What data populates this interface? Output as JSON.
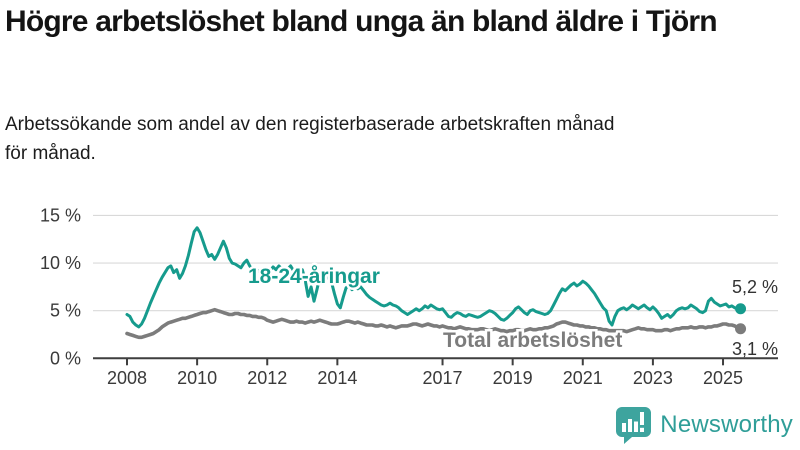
{
  "header": {
    "title_lines": [
      "Högre arbetslöshet bland unga än bland äldre i Tjörn"
    ],
    "subtitle_lines": [
      "Arbetssökande som andel av den registerbaserade arbetskraften månad",
      "för månad."
    ]
  },
  "footer": {
    "brand": "Newsworthy"
  },
  "colors": {
    "youth": "#169b8d",
    "total": "#7c7c7c",
    "grid": "#d9d9d9",
    "axis": "#3f3f3f",
    "tick_text": "#3a3a3a",
    "annotation_text": "#333333",
    "brand_teal": "#3ea49e"
  },
  "chart_data": {
    "type": "line",
    "title": "Högre arbetslöshet bland unga än bland äldre i Tjörn",
    "subtitle": "Arbetssökande som andel av den registerbaserade arbetskraften månad för månad.",
    "frequency": "monthly",
    "x_start_year": 2008,
    "x_end": "2025-07",
    "ylim": [
      0,
      15
    ],
    "grid": true,
    "y_ticks": [
      {
        "value": 0,
        "label": "0 %"
      },
      {
        "value": 5,
        "label": "5 %"
      },
      {
        "value": 10,
        "label": "10 %"
      },
      {
        "value": 15,
        "label": "15 %"
      }
    ],
    "x_ticks": [
      {
        "year": 2008,
        "label": "2008"
      },
      {
        "year": 2010,
        "label": "2010"
      },
      {
        "year": 2012,
        "label": "2012"
      },
      {
        "year": 2014,
        "label": "2014"
      },
      {
        "year": 2017,
        "label": "2017"
      },
      {
        "year": 2019,
        "label": "2019"
      },
      {
        "year": 2021,
        "label": "2021"
      },
      {
        "year": 2023,
        "label": "2023"
      },
      {
        "year": 2025,
        "label": "2025"
      }
    ],
    "series": [
      {
        "name": "Total arbetslöshet",
        "color": "#7c7c7c",
        "end_label": "3,1 %",
        "values": [
          2.6,
          2.5,
          2.4,
          2.3,
          2.2,
          2.2,
          2.3,
          2.4,
          2.5,
          2.6,
          2.8,
          3.0,
          3.3,
          3.5,
          3.7,
          3.8,
          3.9,
          4.0,
          4.1,
          4.2,
          4.2,
          4.3,
          4.4,
          4.5,
          4.6,
          4.7,
          4.8,
          4.8,
          4.9,
          5.0,
          5.1,
          5.0,
          4.9,
          4.8,
          4.7,
          4.6,
          4.6,
          4.7,
          4.7,
          4.6,
          4.6,
          4.5,
          4.5,
          4.4,
          4.4,
          4.3,
          4.3,
          4.2,
          4.0,
          3.9,
          3.8,
          3.9,
          4.0,
          4.1,
          4.0,
          3.9,
          3.8,
          3.8,
          3.9,
          3.8,
          3.8,
          3.7,
          3.8,
          3.9,
          3.8,
          3.9,
          4.0,
          3.9,
          3.8,
          3.7,
          3.6,
          3.6,
          3.6,
          3.7,
          3.8,
          3.9,
          3.9,
          3.8,
          3.7,
          3.8,
          3.7,
          3.6,
          3.5,
          3.5,
          3.5,
          3.4,
          3.4,
          3.5,
          3.4,
          3.3,
          3.4,
          3.3,
          3.2,
          3.3,
          3.4,
          3.4,
          3.4,
          3.5,
          3.6,
          3.6,
          3.5,
          3.4,
          3.5,
          3.6,
          3.5,
          3.4,
          3.4,
          3.3,
          3.4,
          3.3,
          3.2,
          3.2,
          3.1,
          3.2,
          3.3,
          3.2,
          3.1,
          3.1,
          3.0,
          3.0,
          3.0,
          3.1,
          3.1,
          3.0,
          2.9,
          3.0,
          3.1,
          3.0,
          2.9,
          2.9,
          2.8,
          2.9,
          2.9,
          3.0,
          3.0,
          2.9,
          2.9,
          3.0,
          3.1,
          3.0,
          3.0,
          3.1,
          3.1,
          3.2,
          3.2,
          3.3,
          3.4,
          3.6,
          3.7,
          3.8,
          3.8,
          3.7,
          3.6,
          3.5,
          3.5,
          3.4,
          3.4,
          3.3,
          3.3,
          3.2,
          3.2,
          3.1,
          3.1,
          3.0,
          3.0,
          2.9,
          2.9,
          2.9,
          2.9,
          2.9,
          2.9,
          2.8,
          2.9,
          3.0,
          3.1,
          3.2,
          3.1,
          3.1,
          3.0,
          3.0,
          3.0,
          2.9,
          2.9,
          2.9,
          3.0,
          3.0,
          2.9,
          3.0,
          3.1,
          3.1,
          3.2,
          3.2,
          3.2,
          3.3,
          3.2,
          3.2,
          3.3,
          3.3,
          3.2,
          3.3,
          3.3,
          3.4,
          3.4,
          3.5,
          3.6,
          3.6,
          3.5,
          3.5,
          3.4,
          3.2,
          3.1
        ]
      },
      {
        "name": "18-24-åringar",
        "color": "#169b8d",
        "end_label": "5,2 %",
        "values": [
          4.6,
          4.4,
          3.8,
          3.5,
          3.3,
          3.6,
          4.2,
          5.0,
          5.8,
          6.5,
          7.2,
          7.9,
          8.5,
          9.0,
          9.5,
          9.7,
          9.0,
          9.3,
          8.4,
          8.9,
          9.7,
          10.8,
          12.1,
          13.3,
          13.7,
          13.2,
          12.3,
          11.4,
          10.7,
          10.9,
          10.4,
          10.9,
          11.6,
          12.3,
          11.6,
          10.5,
          10.0,
          9.9,
          9.7,
          9.5,
          10.0,
          10.3,
          9.7,
          9.2,
          9.0,
          9.2,
          8.9,
          8.7,
          8.6,
          9.2,
          9.6,
          9.3,
          9.7,
          9.4,
          9.0,
          9.4,
          9.7,
          9.2,
          9.5,
          9.1,
          9.3,
          8.2,
          6.5,
          7.5,
          6.0,
          7.2,
          8.5,
          8.6,
          8.4,
          8.5,
          8.0,
          6.8,
          5.7,
          5.3,
          6.4,
          7.4,
          7.6,
          7.2,
          7.5,
          7.3,
          7.5,
          7.1,
          6.7,
          6.4,
          6.2,
          6.0,
          5.8,
          5.6,
          5.5,
          5.6,
          5.8,
          5.6,
          5.5,
          5.3,
          5.0,
          4.8,
          4.6,
          4.8,
          5.0,
          5.2,
          5.0,
          5.2,
          5.5,
          5.3,
          5.6,
          5.4,
          5.2,
          5.1,
          5.2,
          4.8,
          4.4,
          4.3,
          4.6,
          4.8,
          4.7,
          4.5,
          4.4,
          4.6,
          4.5,
          4.4,
          4.3,
          4.4,
          4.6,
          4.8,
          5.0,
          4.9,
          4.7,
          4.4,
          4.1,
          4.0,
          4.2,
          4.5,
          4.8,
          5.2,
          5.4,
          5.1,
          4.8,
          4.6,
          5.0,
          5.1,
          4.9,
          4.8,
          4.7,
          4.6,
          4.7,
          5.0,
          5.6,
          6.2,
          6.8,
          7.3,
          7.1,
          7.4,
          7.7,
          7.9,
          7.6,
          7.8,
          8.1,
          7.9,
          7.6,
          7.2,
          6.8,
          6.3,
          5.8,
          5.3,
          5.0,
          3.9,
          3.5,
          4.4,
          5.0,
          5.2,
          5.3,
          5.1,
          5.3,
          5.6,
          5.4,
          5.2,
          5.4,
          5.6,
          5.3,
          5.1,
          5.4,
          5.1,
          4.7,
          4.2,
          4.4,
          4.6,
          4.3,
          4.6,
          5.0,
          5.2,
          5.3,
          5.2,
          5.3,
          5.6,
          5.4,
          5.2,
          4.9,
          4.8,
          5.0,
          6.0,
          6.3,
          5.9,
          5.7,
          5.5,
          5.6,
          5.7,
          5.4,
          5.5,
          5.3,
          5.2,
          5.2
        ]
      }
    ],
    "legend_position": "inline-labels",
    "annotations": [
      {
        "text": "5,2 %",
        "series": "18-24-åringar"
      },
      {
        "text": "3,1 %",
        "series": "Total arbetslöshet"
      }
    ]
  }
}
